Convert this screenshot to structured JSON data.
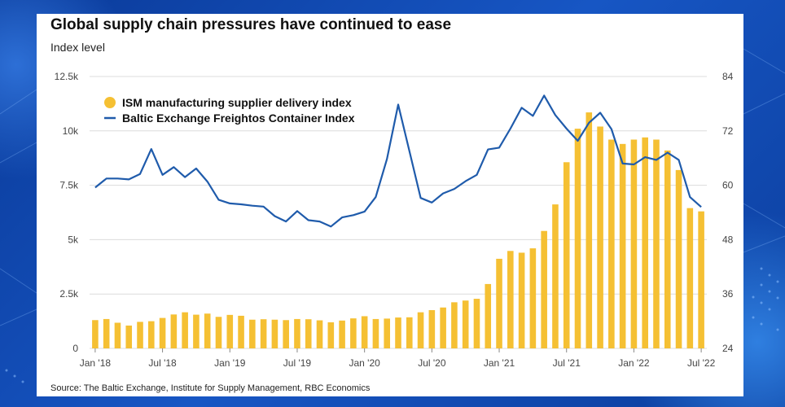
{
  "title": "Global supply chain pressures have continued to ease",
  "subtitle": "Index level",
  "source": "Source: The Baltic Exchange, Institute for Supply Management, RBC Economics",
  "colors": {
    "bars": "#f5c033",
    "line": "#1f5bab",
    "grid": "#dcdcdc"
  },
  "chart_data": {
    "type": "bar",
    "grid": true,
    "legend_position": "top-left",
    "x_ticks": [
      "Jan '18",
      "Jul '18",
      "Jan '19",
      "Jul '19",
      "Jan '20",
      "Jul '20",
      "Jan '21",
      "Jul '21",
      "Jan '22",
      "Jul '22"
    ],
    "y_left": {
      "range": [
        0,
        12500
      ],
      "ticks": [
        "0",
        "2.5k",
        "5k",
        "7.5k",
        "10k",
        "12.5k"
      ]
    },
    "y_right": {
      "range": [
        24,
        84
      ],
      "ticks": [
        "24",
        "36",
        "48",
        "60",
        "72",
        "84"
      ]
    },
    "series": [
      {
        "name": "ISM manufacturing supplier delivery index",
        "kind": "bar",
        "axis": "left",
        "values": [
          1300,
          1350,
          1180,
          1050,
          1220,
          1250,
          1400,
          1560,
          1660,
          1550,
          1600,
          1450,
          1540,
          1500,
          1320,
          1340,
          1320,
          1300,
          1350,
          1340,
          1290,
          1200,
          1280,
          1380,
          1480,
          1350,
          1370,
          1420,
          1430,
          1660,
          1760,
          1880,
          2120,
          2200,
          2280,
          2960,
          4120,
          4480,
          4400,
          4600,
          5400,
          6620,
          8560,
          10100,
          10850,
          10200,
          9600,
          9400,
          9600,
          9700,
          9600,
          9100,
          8200,
          6450,
          6300
        ]
      },
      {
        "name": "Baltic Exchange Freightos Container Index",
        "kind": "line",
        "axis": "right",
        "values": [
          59.5,
          61.5,
          61.5,
          61.3,
          62.5,
          68,
          62.3,
          64,
          61.8,
          63.7,
          60.8,
          56.8,
          56,
          55.8,
          55.5,
          55.3,
          53.2,
          52,
          54.3,
          52.3,
          52,
          50.9,
          52.9,
          53.4,
          54.2,
          57.4,
          65.8,
          77.8,
          67.5,
          57.2,
          56.2,
          58.2,
          59.2,
          60.9,
          62.3,
          67.9,
          68.3,
          72.5,
          77.1,
          75.3,
          79.8,
          75.5,
          72.5,
          69.8,
          73.8,
          76,
          72.4,
          64.8,
          64.6,
          66.2,
          65.6,
          67.2,
          65.6,
          57.4,
          55.2
        ]
      }
    ]
  }
}
